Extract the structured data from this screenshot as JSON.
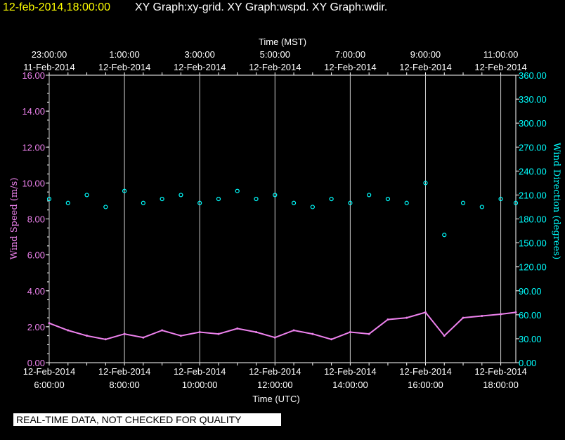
{
  "header": {
    "timestamp": "12-feb-2014,18:00:00",
    "graphs": "XY Graph:xy-grid.  XY Graph:wspd.  XY Graph:wdir."
  },
  "disclaimer": "REAL-TIME DATA, NOT CHECKED FOR QUALITY",
  "colors": {
    "background": "#000000",
    "timestamp": "#ffff00",
    "text": "#ffffff",
    "wind_speed": "#ee82ee",
    "wind_direction": "#00ffff",
    "grid": "#ffffff"
  },
  "chart_data": {
    "type": "line",
    "top_axis": {
      "title": "Time (MST)",
      "ticks": [
        {
          "time": "23:00:00",
          "date": "11-Feb-2014"
        },
        {
          "time": "1:00:00",
          "date": "12-Feb-2014"
        },
        {
          "time": "3:00:00",
          "date": "12-Feb-2014"
        },
        {
          "time": "5:00:00",
          "date": "12-Feb-2014"
        },
        {
          "time": "7:00:00",
          "date": "12-Feb-2014"
        },
        {
          "time": "9:00:00",
          "date": "12-Feb-2014"
        },
        {
          "time": "11:00:00",
          "date": "12-Feb-2014"
        }
      ]
    },
    "bottom_axis": {
      "title": "Time (UTC)",
      "ticks": [
        {
          "date": "12-Feb-2014",
          "time": "6:00:00"
        },
        {
          "date": "12-Feb-2014",
          "time": "8:00:00"
        },
        {
          "date": "12-Feb-2014",
          "time": "10:00:00"
        },
        {
          "date": "12-Feb-2014",
          "time": "12:00:00"
        },
        {
          "date": "12-Feb-2014",
          "time": "14:00:00"
        },
        {
          "date": "12-Feb-2014",
          "time": "16:00:00"
        },
        {
          "date": "12-Feb-2014",
          "time": "18:00:00"
        }
      ]
    },
    "x_range_utc_hours": [
      6,
      18.4
    ],
    "left_axis": {
      "title": "Wind Speed (m/s)",
      "range": [
        0,
        16
      ],
      "ticks": [
        "0.00",
        "2.00",
        "4.00",
        "6.00",
        "8.00",
        "10.00",
        "12.00",
        "14.00",
        "16.00"
      ]
    },
    "right_axis": {
      "title": "Wind Direction (degrees)",
      "range": [
        0,
        360
      ],
      "ticks": [
        "0.00",
        "30.00",
        "60.00",
        "90.00",
        "120.00",
        "150.00",
        "180.00",
        "210.00",
        "240.00",
        "270.00",
        "300.00",
        "330.00",
        "360.00"
      ]
    },
    "grid": true,
    "series": [
      {
        "name": "Wind Speed (m/s)",
        "color": "#ee82ee",
        "style": "line",
        "x": [
          6.0,
          6.5,
          7.0,
          7.5,
          8.0,
          8.5,
          9.0,
          9.5,
          10.0,
          10.5,
          11.0,
          11.5,
          12.0,
          12.5,
          13.0,
          13.5,
          14.0,
          14.5,
          15.0,
          15.5,
          16.0,
          16.5,
          17.0,
          17.5,
          18.0,
          18.4
        ],
        "y": [
          2.2,
          1.8,
          1.5,
          1.3,
          1.6,
          1.4,
          1.8,
          1.5,
          1.7,
          1.6,
          1.9,
          1.7,
          1.4,
          1.8,
          1.6,
          1.3,
          1.7,
          1.6,
          2.4,
          2.5,
          2.8,
          1.5,
          2.5,
          2.6,
          2.7,
          2.8
        ]
      },
      {
        "name": "Wind Direction (degrees)",
        "color": "#00ffff",
        "style": "scatter",
        "x": [
          6.0,
          6.5,
          7.0,
          7.5,
          8.0,
          8.5,
          9.0,
          9.5,
          10.0,
          10.5,
          11.0,
          11.5,
          12.0,
          12.5,
          13.0,
          13.5,
          14.0,
          14.5,
          15.0,
          15.5,
          16.0,
          16.5,
          17.0,
          17.5,
          18.0,
          18.4
        ],
        "y": [
          205,
          200,
          210,
          195,
          215,
          200,
          205,
          210,
          200,
          205,
          215,
          205,
          210,
          200,
          195,
          205,
          200,
          210,
          205,
          200,
          225,
          160,
          200,
          195,
          205,
          200
        ]
      }
    ]
  }
}
